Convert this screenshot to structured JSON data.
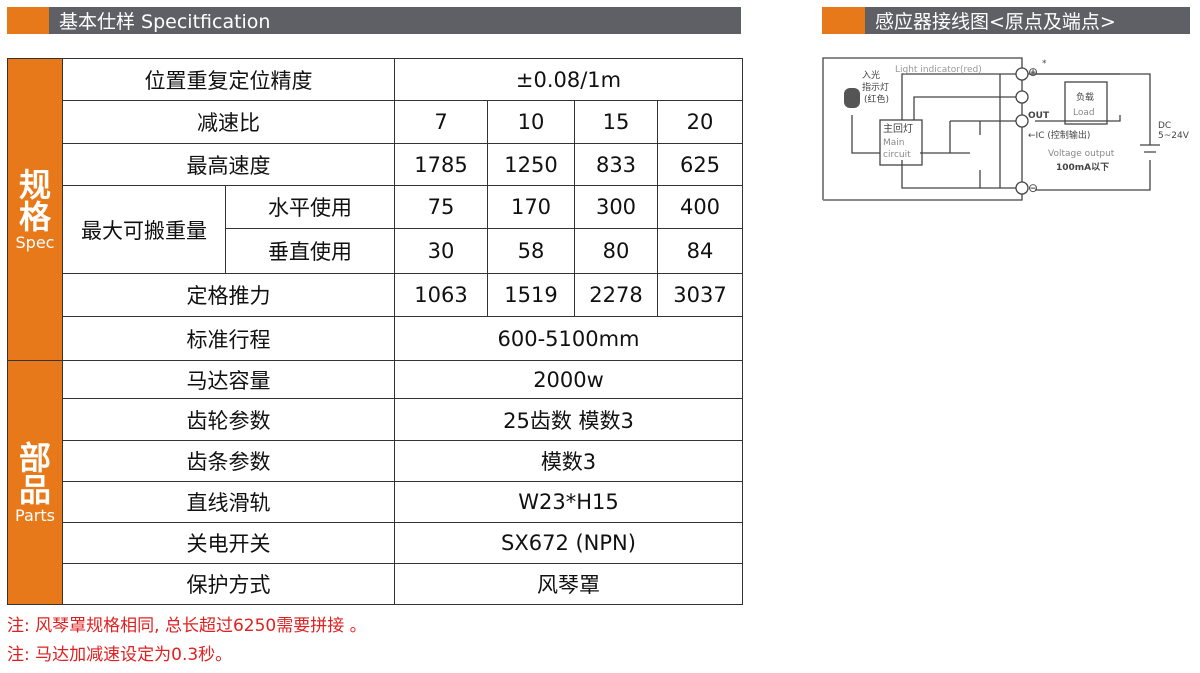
{
  "spec_header": {
    "title": "基本仕样 Specitfication"
  },
  "wiring_header": {
    "title": "感应器接线图<原点及端点>"
  },
  "colors": {
    "accent": "#e8791a",
    "header_bg": "#5f6065",
    "note": "#e02020"
  },
  "spec": {
    "category": {
      "cn": "规格",
      "en": "Spec"
    },
    "precision": {
      "label": "位置重复定位精度",
      "value": "±0.08/1m"
    },
    "ratio": {
      "label": "减速比",
      "values": [
        "7",
        "10",
        "15",
        "20"
      ]
    },
    "speed": {
      "label": "最高速度",
      "values": [
        "1785",
        "1250",
        "833",
        "625"
      ]
    },
    "payload": {
      "label": "最大可搬重量",
      "horizontal": {
        "label": "水平使用",
        "values": [
          "75",
          "170",
          "300",
          "400"
        ]
      },
      "vertical": {
        "label": "垂直使用",
        "values": [
          "30",
          "58",
          "80",
          "84"
        ]
      }
    },
    "thrust": {
      "label": "定格推力",
      "values": [
        "1063",
        "1519",
        "2278",
        "3037"
      ]
    },
    "stroke": {
      "label": "标准行程",
      "value": "600-5100mm"
    }
  },
  "parts": {
    "category": {
      "cn": "部品",
      "en": "Parts"
    },
    "rows": [
      {
        "label": "马达容量",
        "value": "2000w"
      },
      {
        "label": "齿轮参数",
        "value": "25齿数  模数3"
      },
      {
        "label": "齿条参数",
        "value": "模数3"
      },
      {
        "label": "直线滑轨",
        "value": "W23*H15"
      },
      {
        "label": "关电开关",
        "value": "SX672 (NPN)"
      },
      {
        "label": "保护方式",
        "value": "风琴罩"
      }
    ]
  },
  "notes": [
    "注: 风琴罩规格相同, 总长超过6250需要拼接 。",
    "注: 马达加减速设定为0.3秒。"
  ],
  "diagram": {
    "light_indicator": "Light indicator(red)",
    "led_cn": "入光",
    "led_cn2": "指示灯",
    "led_cn3": "(红色)",
    "main_cn": "主回灯",
    "main_en1": "Main",
    "main_en2": "circuit",
    "load_cn": "负载",
    "load_en": "Load",
    "out": "OUT",
    "ic": "←IC (控制输出)",
    "voltage": "Voltage output",
    "current": "100mA以下",
    "dc": "DC",
    "dc_range": "5~24V",
    "plus": "⊕",
    "minus": "⊖",
    "star": "*"
  }
}
